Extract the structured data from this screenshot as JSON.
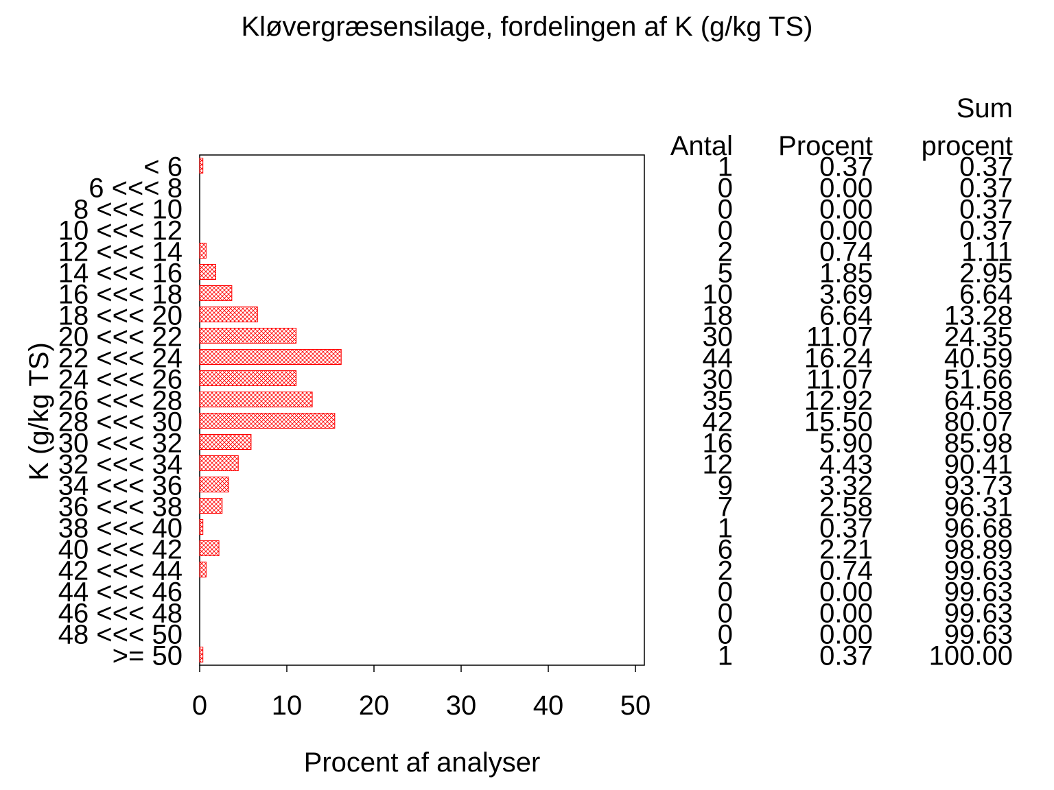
{
  "chart_data": {
    "type": "bar",
    "orientation": "horizontal",
    "title": "Kløvergræsensilage, fordelingen af K (g/kg TS)",
    "xlabel": "Procent af analyser",
    "ylabel": "K (g/kg TS)",
    "xlim": [
      0,
      50
    ],
    "xticks": [
      "0",
      "10",
      "20",
      "30",
      "40",
      "50"
    ],
    "grid": false,
    "categories": [
      "< 6",
      "6 <<< 8",
      "8 <<< 10",
      "10 <<< 12",
      "12 <<< 14",
      "14 <<< 16",
      "16 <<< 18",
      "18 <<< 20",
      "20 <<< 22",
      "22 <<< 24",
      "24 <<< 26",
      "26 <<< 28",
      "28 <<< 30",
      "30 <<< 32",
      "32 <<< 34",
      "34 <<< 36",
      "36 <<< 38",
      "38 <<< 40",
      "40 <<< 42",
      "42 <<< 44",
      "44 <<< 46",
      "46 <<< 48",
      "48 <<< 50",
      ">= 50"
    ],
    "values": [
      0.37,
      0.0,
      0.0,
      0.0,
      0.74,
      1.85,
      3.69,
      6.64,
      11.07,
      16.24,
      11.07,
      12.92,
      15.5,
      5.9,
      4.43,
      3.32,
      2.58,
      0.37,
      2.21,
      0.74,
      0.0,
      0.0,
      0.0,
      0.37
    ],
    "bar_color": "#ff0000",
    "table": {
      "headers": {
        "antal": "Antal",
        "procent": "Procent",
        "sum_top": "Sum",
        "sum_bottom": "procent"
      },
      "antal": [
        "1",
        "0",
        "0",
        "0",
        "2",
        "5",
        "10",
        "18",
        "30",
        "44",
        "30",
        "35",
        "42",
        "16",
        "12",
        "9",
        "7",
        "1",
        "6",
        "2",
        "0",
        "0",
        "0",
        "1"
      ],
      "procent": [
        "0.37",
        "0.00",
        "0.00",
        "0.00",
        "0.74",
        "1.85",
        "3.69",
        "6.64",
        "11.07",
        "16.24",
        "11.07",
        "12.92",
        "15.50",
        "5.90",
        "4.43",
        "3.32",
        "2.58",
        "0.37",
        "2.21",
        "0.74",
        "0.00",
        "0.00",
        "0.00",
        "0.37"
      ],
      "sum_procent": [
        "0.37",
        "0.37",
        "0.37",
        "0.37",
        "1.11",
        "2.95",
        "6.64",
        "13.28",
        "24.35",
        "40.59",
        "51.66",
        "64.58",
        "80.07",
        "85.98",
        "90.41",
        "93.73",
        "96.31",
        "96.68",
        "98.89",
        "99.63",
        "99.63",
        "99.63",
        "99.63",
        "100.00"
      ]
    }
  }
}
